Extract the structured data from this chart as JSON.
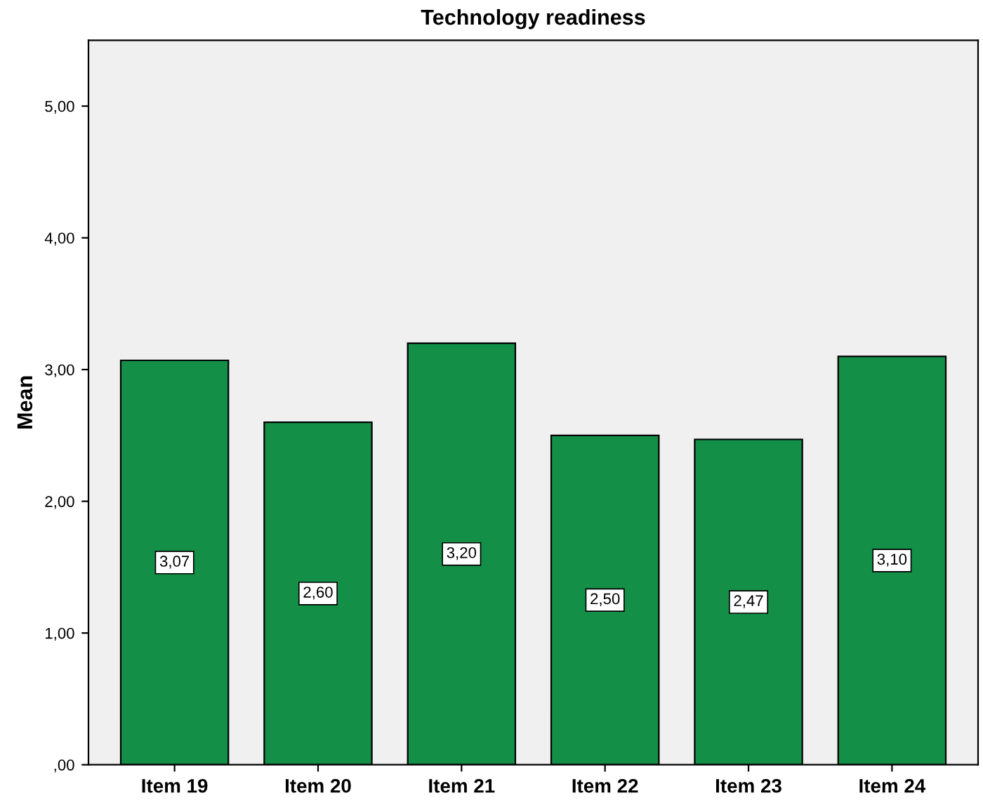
{
  "chart_data": {
    "type": "bar",
    "title": "Technology readiness",
    "ylabel": "Mean",
    "categories": [
      "Item 19",
      "Item 20",
      "Item 21",
      "Item 22",
      "Item 23",
      "Item 24"
    ],
    "values": [
      3.07,
      2.6,
      3.2,
      2.5,
      2.47,
      3.1
    ],
    "value_labels": [
      "3,07",
      "2,60",
      "3,20",
      "2,50",
      "2,47",
      "3,10"
    ],
    "color": "#138f48",
    "ylim": [
      0,
      5.5
    ],
    "yticks": [
      {
        "value": 0,
        "label": ",00"
      },
      {
        "value": 1,
        "label": "1,00"
      },
      {
        "value": 2,
        "label": "2,00"
      },
      {
        "value": 3,
        "label": "3,00"
      },
      {
        "value": 4,
        "label": "4,00"
      },
      {
        "value": 5,
        "label": "5,00"
      }
    ],
    "grid": false,
    "legend": false
  }
}
